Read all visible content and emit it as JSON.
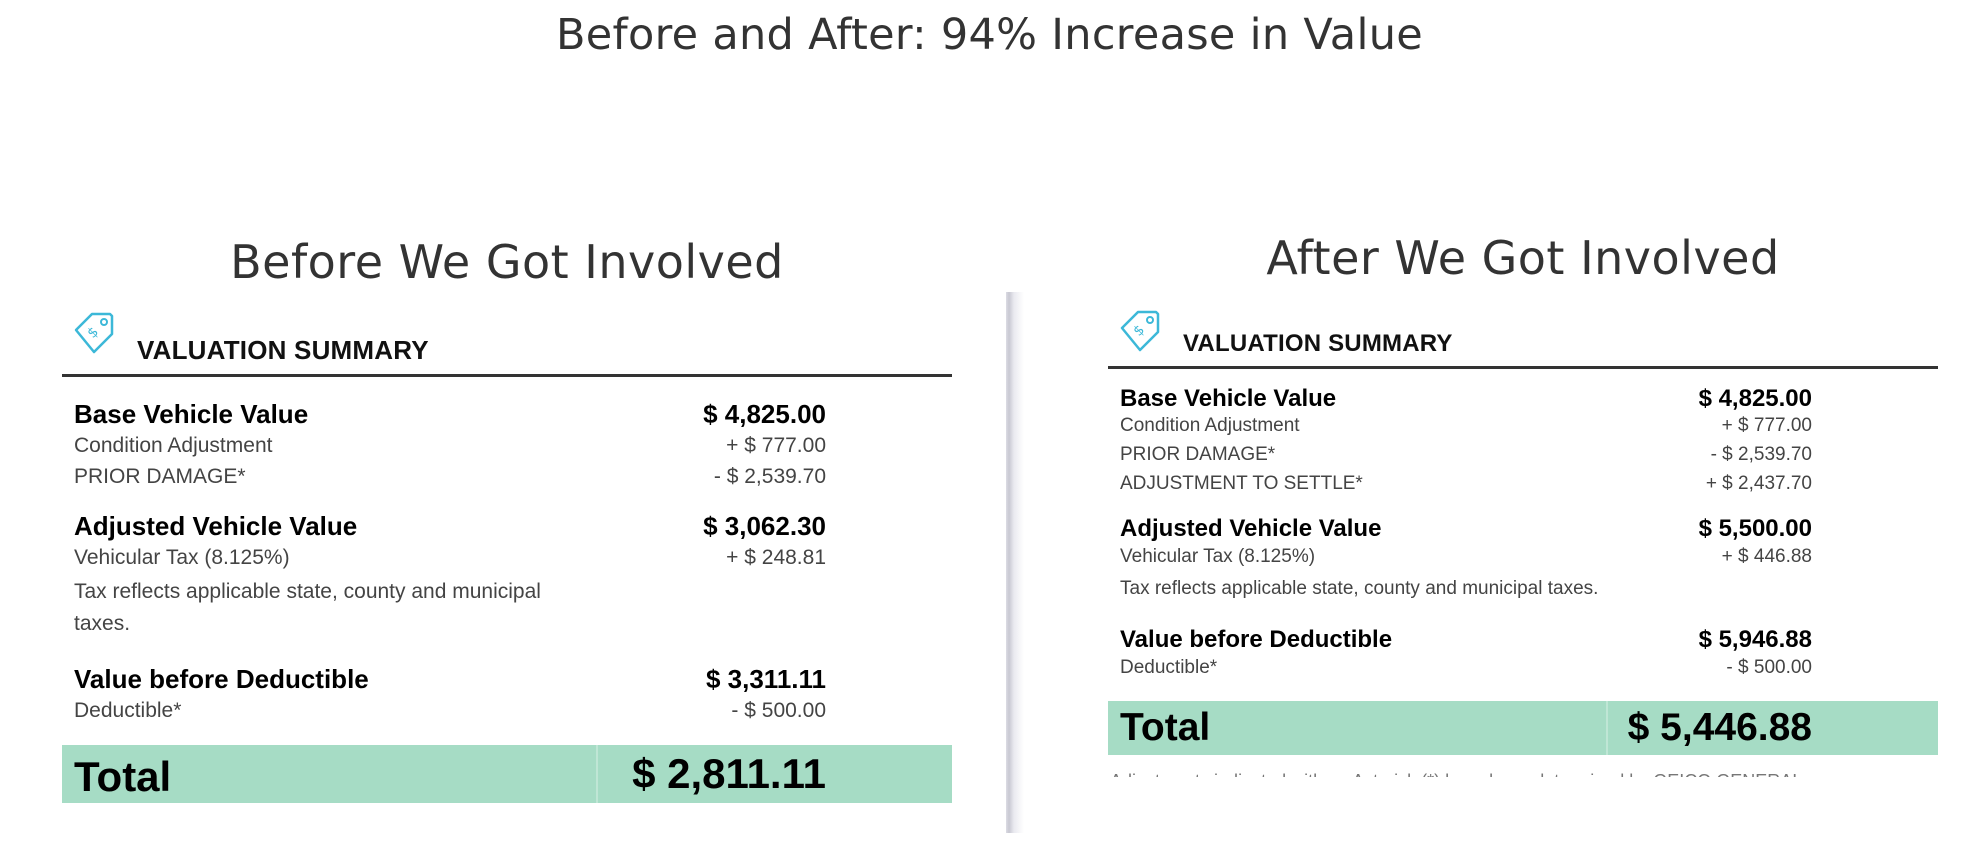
{
  "title": "Before and After: 94% Increase in Value",
  "before": {
    "heading": "Before We Got Involved",
    "summary_title": "VALUATION SUMMARY",
    "base_label": "Base Vehicle Value",
    "base_value": "$ 4,825.00",
    "condition_label": "Condition Adjustment",
    "condition_value": "+ $ 777.00",
    "damage_label": "PRIOR DAMAGE*",
    "damage_value": "- $ 2,539.70",
    "adjusted_label": "Adjusted Vehicle Value",
    "adjusted_value": "$ 3,062.30",
    "tax_label": "Vehicular Tax (8.125%)",
    "tax_value": "+ $ 248.81",
    "tax_note": "Tax reflects applicable state, county and municipal taxes.",
    "before_deductible_label": "Value before Deductible",
    "before_deductible_value": "$ 3,311.11",
    "deductible_label": "Deductible*",
    "deductible_value": "- $ 500.00",
    "total_label": "Total",
    "total_value": "$ 2,811.11"
  },
  "after": {
    "heading": "After We Got Involved",
    "summary_title": "VALUATION SUMMARY",
    "base_label": "Base Vehicle Value",
    "base_value": "$ 4,825.00",
    "condition_label": "Condition Adjustment",
    "condition_value": "+ $ 777.00",
    "damage_label": "PRIOR DAMAGE*",
    "damage_value": "- $ 2,539.70",
    "settle_label": "ADJUSTMENT TO SETTLE*",
    "settle_value": "+ $ 2,437.70",
    "adjusted_label": "Adjusted Vehicle Value",
    "adjusted_value": "$ 5,500.00",
    "tax_label": "Vehicular Tax (8.125%)",
    "tax_value": "+ $ 446.88",
    "tax_note": "Tax reflects applicable state, county and municipal taxes.",
    "before_deductible_label": "Value before Deductible",
    "before_deductible_value": "$ 5,946.88",
    "deductible_label": "Deductible*",
    "deductible_value": "- $ 500.00",
    "total_label": "Total",
    "total_value": "$ 5,446.88",
    "footnote": "Adjustments indicated with an Asterisk (*) have been determined by GEICO GENERAL"
  },
  "colors": {
    "total_bar": "#a6dcc5",
    "icon": "#3cb8d8"
  },
  "icons": {
    "valuation": "price-tag-dollar-icon"
  }
}
